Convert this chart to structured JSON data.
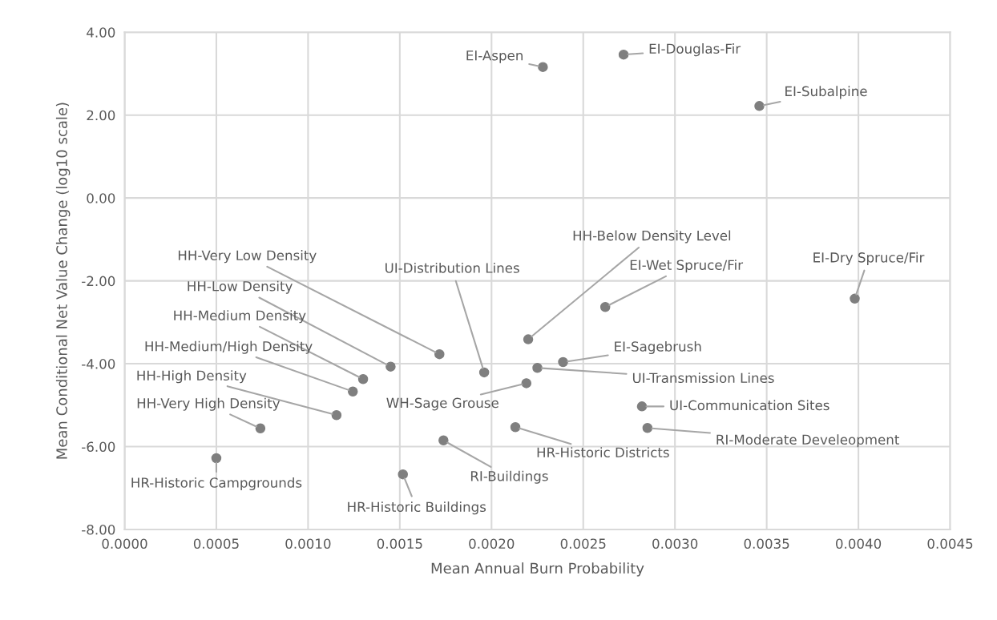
{
  "chart_data": {
    "type": "scatter",
    "xlabel": "Mean Annual Burn Probability",
    "ylabel": "Mean Conditional Net Value Change (log10 scale)",
    "x": [
      0.00228,
      0.00272,
      0.00346,
      0.001716,
      0.00145,
      0.0013,
      0.001244,
      0.001155,
      0.00074,
      0.0005,
      0.00196,
      0.00219,
      0.001738,
      0.001517,
      0.00213,
      0.0022,
      0.00262,
      0.00398,
      0.00239,
      0.00225,
      0.00282,
      0.00285
    ],
    "values": [
      3.16,
      3.46,
      2.22,
      -3.77,
      -4.07,
      -4.37,
      -4.67,
      -5.24,
      -5.56,
      -6.28,
      -4.21,
      -4.47,
      -5.85,
      -6.67,
      -5.53,
      -3.41,
      -2.63,
      -2.43,
      -3.96,
      -4.1,
      -5.03,
      -5.55
    ],
    "color": "#7f7f7f",
    "marker": "circle",
    "grid": true,
    "xlim": [
      0,
      0.0045
    ],
    "ylim": [
      -8,
      4
    ],
    "xticks": [
      {
        "value": 0,
        "label": "0.0000"
      },
      {
        "value": 0.0005,
        "label": "0.0005"
      },
      {
        "value": 0.001,
        "label": "0.0010"
      },
      {
        "value": 0.0015,
        "label": "0.0015"
      },
      {
        "value": 0.002,
        "label": "0.0020"
      },
      {
        "value": 0.0025,
        "label": "0.0025"
      },
      {
        "value": 0.003,
        "label": "0.0030"
      },
      {
        "value": 0.0035,
        "label": "0.0035"
      },
      {
        "value": 0.004,
        "label": "0.0040"
      },
      {
        "value": 0.0045,
        "label": "0.0045"
      }
    ],
    "yticks": [
      {
        "value": -8,
        "label": "-8.00"
      },
      {
        "value": -6,
        "label": "-6.00"
      },
      {
        "value": -4,
        "label": "-4.00"
      },
      {
        "value": -2,
        "label": "-2.00"
      },
      {
        "value": 0,
        "label": "0.00"
      },
      {
        "value": 2,
        "label": "2.00"
      },
      {
        "value": 4,
        "label": "4.00"
      }
    ],
    "annotations": [
      {
        "text": "EI-Aspen",
        "x": 0.00228,
        "y": 3.16
      },
      {
        "text": "EI-Douglas-Fir",
        "x": 0.00272,
        "y": 3.46
      },
      {
        "text": "EI-Subalpine",
        "x": 0.00346,
        "y": 2.22
      },
      {
        "text": "HH-Very Low Density",
        "x": 0.001716,
        "y": -3.77
      },
      {
        "text": "HH-Low Density",
        "x": 0.00145,
        "y": -4.07
      },
      {
        "text": "HH-Medium Density",
        "x": 0.0013,
        "y": -4.37
      },
      {
        "text": "HH-Medium/High Density",
        "x": 0.001244,
        "y": -4.67
      },
      {
        "text": "HH-High Density",
        "x": 0.001155,
        "y": -5.24
      },
      {
        "text": "HH-Very High Density",
        "x": 0.00074,
        "y": -5.56
      },
      {
        "text": "HR-Historic Campgrounds",
        "x": 0.0005,
        "y": -6.28
      },
      {
        "text": "UI-Distribution Lines",
        "x": 0.00196,
        "y": -4.21
      },
      {
        "text": "WH-Sage Grouse",
        "x": 0.00219,
        "y": -4.47
      },
      {
        "text": "RI-Buildings",
        "x": 0.001738,
        "y": -5.85
      },
      {
        "text": "HR-Historic Buildings",
        "x": 0.001517,
        "y": -6.67
      },
      {
        "text": "HR-Historic Districts",
        "x": 0.00213,
        "y": -5.53
      },
      {
        "text": "HH-Below Density Level",
        "x": 0.0022,
        "y": -3.41
      },
      {
        "text": "EI-Wet Spruce/Fir",
        "x": 0.00262,
        "y": -2.63
      },
      {
        "text": "EI-Dry Spruce/Fir",
        "x": 0.00398,
        "y": -2.43
      },
      {
        "text": "EI-Sagebrush",
        "x": 0.00239,
        "y": -3.96
      },
      {
        "text": "UI-Transmission Lines",
        "x": 0.00225,
        "y": -4.1
      },
      {
        "text": "UI-Communication Sites",
        "x": 0.00282,
        "y": -5.03
      },
      {
        "text": "RI-Moderate Develeopment",
        "x": 0.00285,
        "y": -5.55
      }
    ]
  }
}
